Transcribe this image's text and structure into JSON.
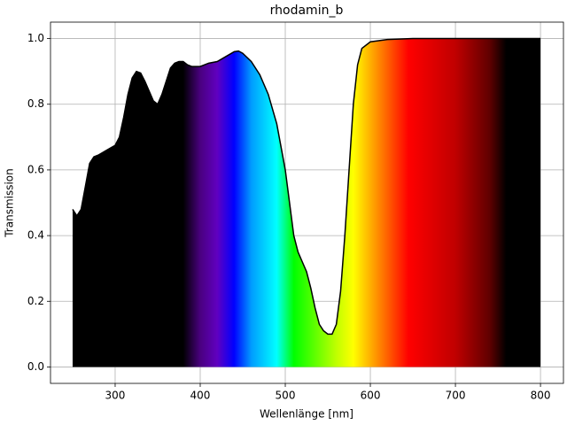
{
  "chart_data": {
    "type": "area",
    "title": "rhodamin_b",
    "x_label": "Wellenlänge [nm]",
    "y_label": "Transmission",
    "x": [
      250,
      255,
      260,
      265,
      270,
      275,
      280,
      290,
      300,
      305,
      310,
      315,
      320,
      325,
      330,
      335,
      340,
      345,
      350,
      355,
      360,
      365,
      370,
      375,
      380,
      385,
      390,
      400,
      410,
      420,
      430,
      440,
      445,
      450,
      460,
      470,
      480,
      490,
      500,
      505,
      510,
      515,
      520,
      525,
      530,
      535,
      540,
      545,
      550,
      555,
      560,
      565,
      570,
      575,
      580,
      585,
      590,
      600,
      620,
      650,
      700,
      750,
      800
    ],
    "series": [
      {
        "color": "#000000",
        "values": [
          0.48,
          0.46,
          0.48,
          0.55,
          0.62,
          0.64,
          0.645,
          0.66,
          0.675,
          0.7,
          0.76,
          0.83,
          0.88,
          0.9,
          0.895,
          0.87,
          0.84,
          0.81,
          0.8,
          0.83,
          0.87,
          0.91,
          0.925,
          0.93,
          0.93,
          0.92,
          0.915,
          0.915,
          0.925,
          0.93,
          0.945,
          0.96,
          0.962,
          0.955,
          0.93,
          0.89,
          0.83,
          0.74,
          0.6,
          0.5,
          0.4,
          0.35,
          0.32,
          0.29,
          0.24,
          0.18,
          0.13,
          0.11,
          0.1,
          0.1,
          0.13,
          0.23,
          0.4,
          0.6,
          0.8,
          0.92,
          0.97,
          0.99,
          0.997,
          1.0,
          1.0,
          1.0,
          1.0
        ]
      }
    ],
    "xlim": [
      224,
      827
    ],
    "ylim": [
      -0.05,
      1.05
    ],
    "xticks": [
      300,
      400,
      500,
      600,
      700,
      800
    ],
    "yticks": [
      {
        "value": 0,
        "label": "0.0"
      },
      0.2,
      0.4,
      0.6,
      0.8,
      {
        "value": 1,
        "label": "1.0"
      }
    ],
    "grid": true
  }
}
